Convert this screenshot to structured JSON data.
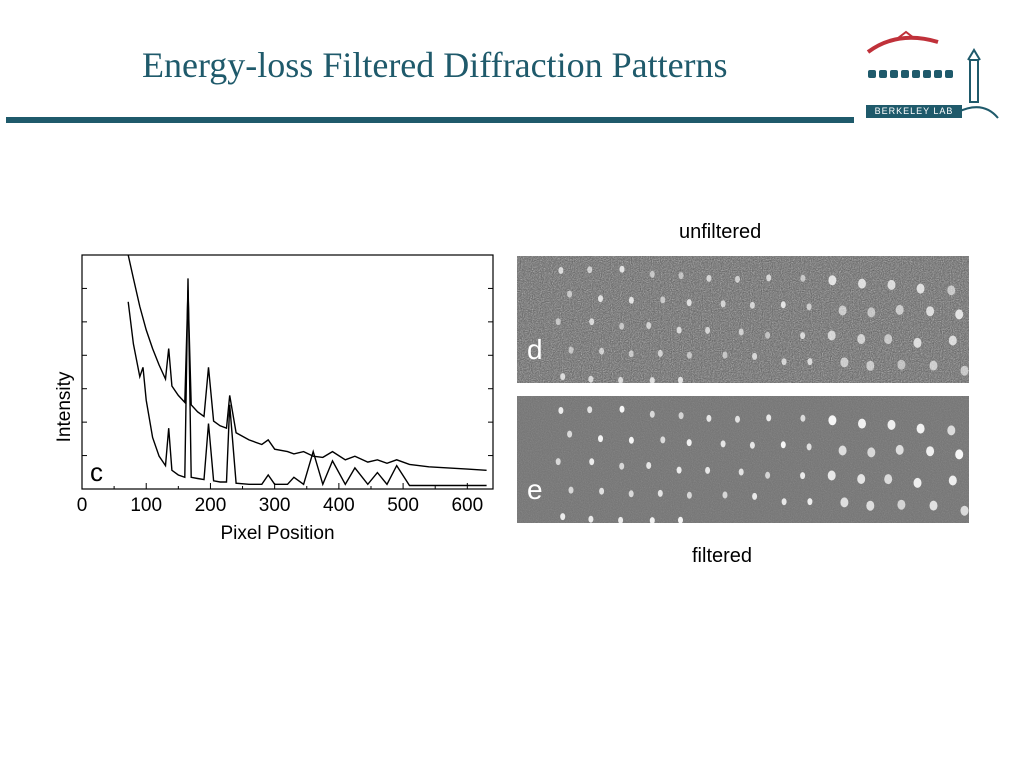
{
  "slide": {
    "title": "Energy-loss Filtered Diffraction Patterns",
    "colors": {
      "title": "#1f5a6b",
      "rule": "#1f5a6b",
      "logo_red": "#c0313a"
    }
  },
  "logo": {
    "text": "BERKELEY LAB",
    "icon": "berkeley-lab-logo"
  },
  "chart_data": {
    "type": "line",
    "panel_label": "c",
    "xlabel": "Pixel Position",
    "ylabel": "Intensity",
    "xlim": [
      0,
      640
    ],
    "xticks": [
      0,
      100,
      200,
      300,
      400,
      500,
      600
    ],
    "series": [
      {
        "x": [
          72,
          80,
          90,
          100,
          110,
          120,
          130,
          135,
          140,
          150,
          160,
          165,
          170,
          180,
          190,
          197,
          205,
          215,
          225,
          230,
          240,
          260,
          280,
          290,
          300,
          320,
          330,
          345,
          360,
          375,
          390,
          410,
          425,
          445,
          460,
          475,
          490,
          510,
          540,
          570,
          600,
          630
        ],
        "y": [
          100,
          90,
          78,
          68,
          60,
          53,
          47,
          60,
          44,
          40,
          37,
          85,
          36,
          33,
          31,
          52,
          29,
          27,
          26,
          40,
          24,
          21,
          19,
          21,
          17,
          16,
          15,
          16,
          14,
          13.5,
          16,
          12.5,
          14,
          11.5,
          12.5,
          11,
          12.5,
          10.5,
          9.5,
          9,
          8.5,
          8
        ]
      },
      {
        "x": [
          72,
          80,
          90,
          95,
          100,
          110,
          120,
          130,
          135,
          140,
          150,
          160,
          165,
          170,
          180,
          190,
          197,
          205,
          215,
          225,
          230,
          240,
          260,
          280,
          290,
          300,
          320,
          330,
          345,
          360,
          375,
          390,
          410,
          425,
          445,
          460,
          475,
          490,
          510,
          540,
          570,
          600,
          630
        ],
        "y": [
          80,
          62,
          48,
          52,
          38,
          22,
          14,
          10,
          26,
          8,
          6,
          5,
          90,
          5,
          4.5,
          4,
          28,
          3.5,
          3,
          3,
          36,
          2.5,
          2,
          2,
          6,
          2,
          2,
          5,
          2,
          16,
          2,
          12,
          2,
          9,
          2,
          7,
          2,
          10,
          1.5,
          1.5,
          1.5,
          1.5,
          1.5
        ]
      }
    ]
  },
  "panels": [
    {
      "letter": "d",
      "caption": "unfiltered"
    },
    {
      "letter": "e",
      "caption": "filtered"
    }
  ]
}
